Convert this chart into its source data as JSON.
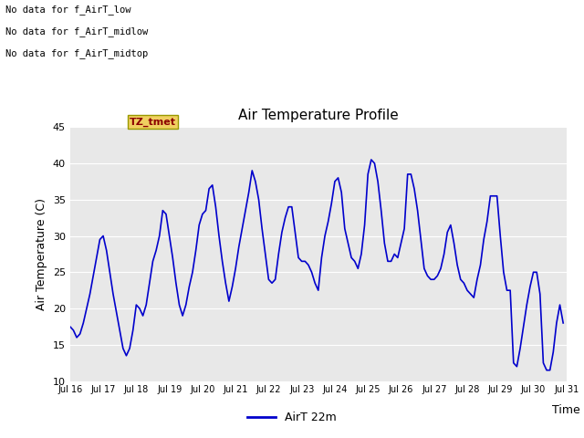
{
  "title": "Air Temperature Profile",
  "xlabel": "Time",
  "ylabel": "Air Temperature (C)",
  "legend_label": "AirT 22m",
  "ylim": [
    10,
    45
  ],
  "xlim": [
    0,
    15
  ],
  "bg_color": "#e8e8e8",
  "line_color": "#0000cc",
  "annotations": [
    "No data for f_AirT_low",
    "No data for f_AirT_midlow",
    "No data for f_AirT_midtop"
  ],
  "annotation_box_label": "TZ_tmet",
  "x_tick_labels": [
    "Jul 16",
    "Jul 17",
    "Jul 18",
    "Jul 19",
    "Jul 20",
    "Jul 21",
    "Jul 22",
    "Jul 23",
    "Jul 24",
    "Jul 25",
    "Jul 26",
    "Jul 27",
    "Jul 28",
    "Jul 29",
    "Jul 30",
    "Jul 31"
  ],
  "x_ticks": [
    0,
    1,
    2,
    3,
    4,
    5,
    6,
    7,
    8,
    9,
    10,
    11,
    12,
    13,
    14,
    15
  ],
  "y_ticks": [
    10,
    15,
    20,
    25,
    30,
    35,
    40,
    45
  ],
  "data_x": [
    0.0,
    0.1,
    0.2,
    0.3,
    0.4,
    0.5,
    0.6,
    0.7,
    0.8,
    0.9,
    1.0,
    1.1,
    1.2,
    1.3,
    1.4,
    1.5,
    1.6,
    1.7,
    1.8,
    1.9,
    2.0,
    2.1,
    2.2,
    2.3,
    2.4,
    2.5,
    2.6,
    2.7,
    2.8,
    2.9,
    3.0,
    3.1,
    3.2,
    3.3,
    3.4,
    3.5,
    3.6,
    3.7,
    3.8,
    3.9,
    4.0,
    4.1,
    4.2,
    4.3,
    4.4,
    4.5,
    4.6,
    4.7,
    4.8,
    4.9,
    5.0,
    5.1,
    5.2,
    5.3,
    5.4,
    5.5,
    5.6,
    5.7,
    5.8,
    5.9,
    6.0,
    6.1,
    6.2,
    6.3,
    6.4,
    6.5,
    6.6,
    6.7,
    6.8,
    6.9,
    7.0,
    7.1,
    7.2,
    7.3,
    7.4,
    7.5,
    7.6,
    7.7,
    7.8,
    7.9,
    8.0,
    8.1,
    8.2,
    8.3,
    8.4,
    8.5,
    8.6,
    8.7,
    8.8,
    8.9,
    9.0,
    9.1,
    9.2,
    9.3,
    9.4,
    9.5,
    9.6,
    9.7,
    9.8,
    9.9,
    10.0,
    10.1,
    10.2,
    10.3,
    10.4,
    10.5,
    10.6,
    10.7,
    10.8,
    10.9,
    11.0,
    11.1,
    11.2,
    11.3,
    11.4,
    11.5,
    11.6,
    11.7,
    11.8,
    11.9,
    12.0,
    12.1,
    12.2,
    12.3,
    12.4,
    12.5,
    12.6,
    12.7,
    12.8,
    12.9,
    13.0,
    13.1,
    13.2,
    13.3,
    13.4,
    13.5,
    13.6,
    13.7,
    13.8,
    13.9,
    14.0,
    14.1,
    14.2,
    14.3,
    14.4,
    14.5,
    14.6,
    14.7,
    14.8,
    14.9
  ],
  "data_y": [
    17.5,
    17.0,
    16.0,
    16.5,
    18.0,
    20.0,
    22.0,
    24.5,
    27.0,
    29.5,
    30.0,
    28.0,
    25.0,
    22.0,
    19.5,
    17.0,
    14.5,
    13.5,
    14.5,
    17.0,
    20.5,
    20.0,
    19.0,
    20.5,
    23.5,
    26.5,
    28.0,
    30.0,
    33.5,
    33.0,
    30.0,
    27.0,
    23.5,
    20.5,
    19.0,
    20.5,
    23.0,
    25.0,
    28.0,
    31.5,
    33.0,
    33.5,
    36.5,
    37.0,
    34.0,
    30.0,
    26.5,
    23.5,
    21.0,
    23.0,
    25.5,
    28.5,
    31.0,
    33.5,
    36.0,
    39.0,
    37.5,
    35.0,
    31.0,
    27.5,
    24.0,
    23.5,
    24.0,
    27.5,
    30.5,
    32.5,
    34.0,
    34.0,
    30.5,
    27.0,
    26.5,
    26.5,
    26.0,
    25.0,
    23.5,
    22.5,
    27.0,
    30.0,
    32.0,
    34.5,
    37.5,
    38.0,
    36.0,
    31.0,
    29.0,
    27.0,
    26.5,
    25.5,
    27.5,
    31.5,
    38.5,
    40.5,
    40.0,
    37.5,
    33.5,
    29.0,
    26.5,
    26.5,
    27.5,
    27.0,
    29.0,
    31.0,
    38.5,
    38.5,
    36.5,
    33.5,
    29.5,
    25.5,
    24.5,
    24.0,
    24.0,
    24.5,
    25.5,
    27.5,
    30.5,
    31.5,
    29.0,
    26.0,
    24.0,
    23.5,
    22.5,
    22.0,
    21.5,
    24.0,
    26.0,
    29.5,
    32.0,
    35.5,
    35.5,
    35.5,
    30.0,
    25.0,
    22.5,
    22.5,
    12.5,
    12.0,
    14.5,
    17.5,
    20.5,
    23.0,
    25.0,
    25.0,
    22.0,
    12.5,
    11.5,
    11.5,
    14.0,
    18.0,
    20.5,
    18.0
  ]
}
